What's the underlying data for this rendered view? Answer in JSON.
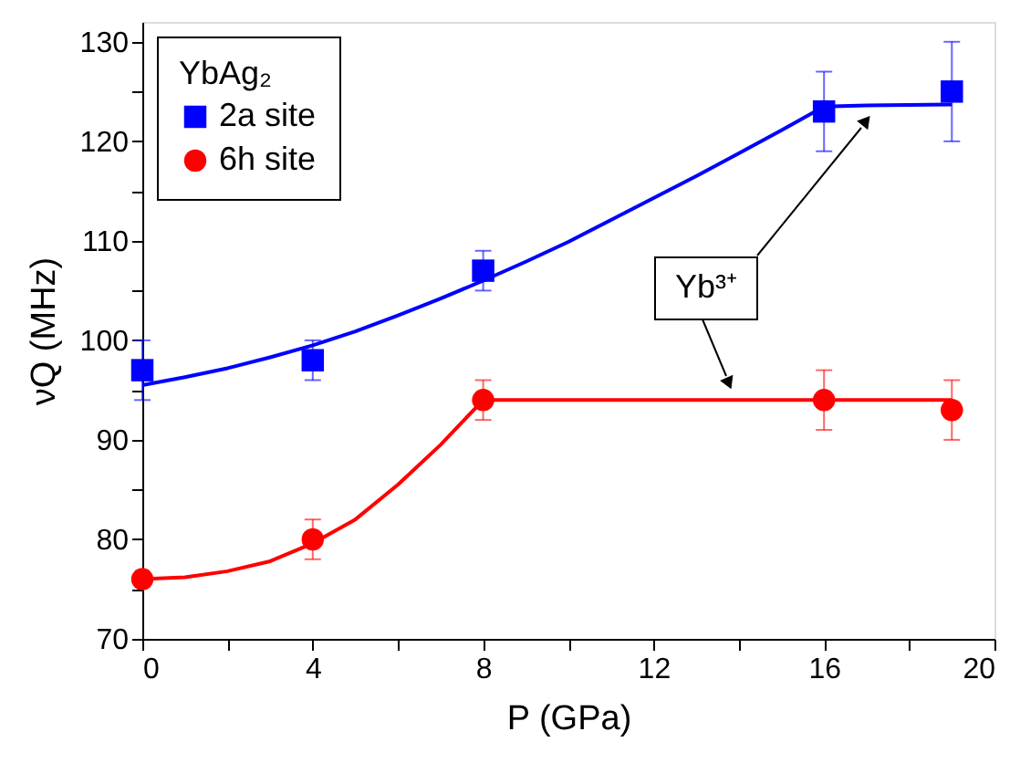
{
  "chart_data": {
    "type": "scatter",
    "xlabel": "P (GPa)",
    "ylabel": "νQ (MHz)",
    "legend_title": "YbAg₂",
    "legend": "top left",
    "grid": false,
    "xlim": [
      0,
      20
    ],
    "ylim": [
      70,
      132
    ],
    "xticks": [
      0,
      {
        "value": 2,
        "label": null
      },
      4,
      {
        "value": 6,
        "label": null
      },
      8,
      {
        "value": 10,
        "label": null
      },
      12,
      {
        "value": 14,
        "label": null
      },
      16,
      {
        "value": 18,
        "label": null
      },
      20
    ],
    "yticks": [
      70,
      {
        "value": 75,
        "label": null
      },
      80,
      {
        "value": 85,
        "label": null
      },
      90,
      {
        "value": 95,
        "label": null
      },
      100,
      {
        "value": 105,
        "label": null
      },
      110,
      {
        "value": 115,
        "label": null
      },
      120,
      {
        "value": 125,
        "label": null
      },
      130
    ],
    "annotations": [
      "Yb³⁺"
    ],
    "series": [
      {
        "name": "2a site",
        "type": "scatter",
        "marker": "square",
        "color": "#0000ff",
        "x": [
          0,
          4,
          8,
          16,
          19
        ],
        "values": [
          97,
          98,
          107,
          123,
          125
        ],
        "errors": [
          3,
          2,
          2,
          4,
          5
        ]
      },
      {
        "name": "6h site",
        "type": "scatter",
        "marker": "circle",
        "color": "#ff0000",
        "x": [
          0,
          4,
          8,
          16,
          19
        ],
        "values": [
          76,
          80,
          94,
          94,
          93
        ],
        "errors": [
          null,
          2,
          2,
          3,
          3
        ]
      },
      {
        "type": "line",
        "line_style": "solid",
        "color": "#0000ff",
        "x": [
          0,
          1,
          2,
          3,
          4,
          5,
          6,
          7,
          8,
          9,
          10,
          11,
          12,
          13,
          14,
          15,
          16,
          17,
          19
        ],
        "values": [
          95.5,
          96.3,
          97.2,
          98.3,
          99.5,
          100.9,
          102.5,
          104.2,
          106,
          107.9,
          109.9,
          112.1,
          114.3,
          116.5,
          118.8,
          121.1,
          123.5,
          123.6,
          123.7
        ]
      },
      {
        "type": "line",
        "line_style": "solid",
        "color": "#ff0000",
        "x": [
          0,
          1,
          2,
          3,
          4,
          5,
          6,
          7,
          8,
          19
        ],
        "values": [
          76,
          76.2,
          76.8,
          77.8,
          79.6,
          82,
          85.5,
          89.5,
          94,
          94
        ]
      }
    ]
  }
}
